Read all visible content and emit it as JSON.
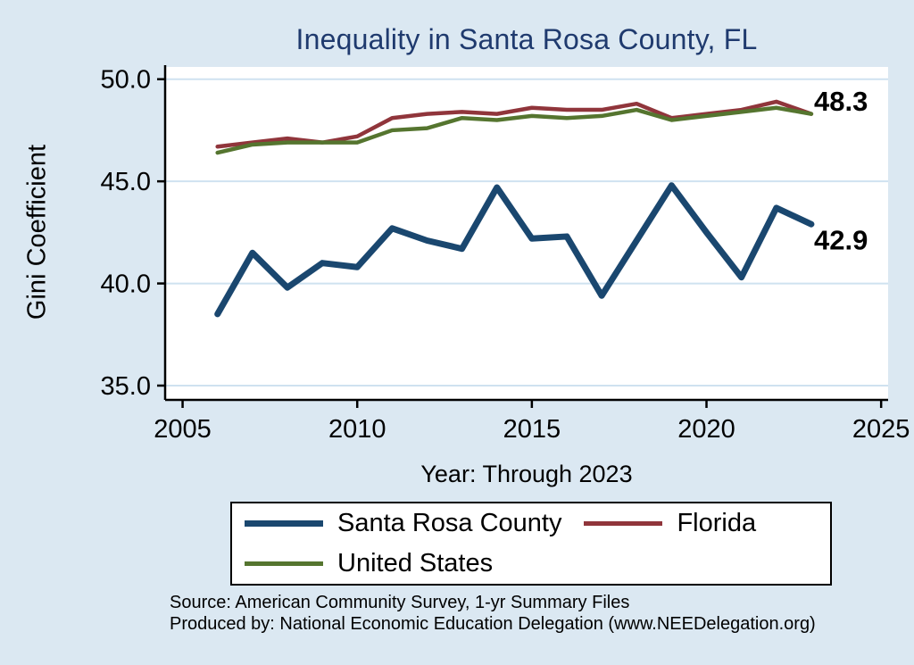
{
  "page": {
    "background": "#dbe8f2"
  },
  "chart_data": {
    "type": "line",
    "title": "Inequality in Santa Rosa County, FL",
    "title_color": "#1f3a6e",
    "xlabel": "Year: Through 2023",
    "ylabel": "Gini Coefficient",
    "x": [
      2006,
      2007,
      2008,
      2009,
      2010,
      2011,
      2012,
      2013,
      2014,
      2015,
      2016,
      2017,
      2018,
      2019,
      2020,
      2021,
      2022,
      2023
    ],
    "xticks": [
      2005,
      2010,
      2015,
      2020,
      2025
    ],
    "yticks": [
      35,
      40,
      45,
      50
    ],
    "xlim": [
      2004.5,
      2025.2
    ],
    "ylim": [
      34.3,
      50.6
    ],
    "grid": true,
    "legend_position": "bottom",
    "series": [
      {
        "name": "Santa Rosa County",
        "color": "#1a476f",
        "width": 7,
        "values": [
          38.5,
          41.5,
          39.8,
          41.0,
          40.8,
          42.7,
          42.1,
          41.7,
          44.7,
          42.2,
          42.3,
          39.4,
          42.1,
          44.8,
          42.5,
          40.3,
          43.7,
          42.9
        ]
      },
      {
        "name": "Florida",
        "color": "#90353b",
        "width": 4.5,
        "values": [
          46.7,
          46.9,
          47.1,
          46.9,
          47.2,
          48.1,
          48.3,
          48.4,
          48.3,
          48.6,
          48.5,
          48.5,
          48.8,
          48.1,
          48.3,
          48.5,
          48.9,
          48.3
        ]
      },
      {
        "name": "United States",
        "color": "#55752f",
        "width": 4.5,
        "values": [
          46.4,
          46.8,
          46.9,
          46.9,
          46.9,
          47.5,
          47.6,
          48.1,
          48.0,
          48.2,
          48.1,
          48.2,
          48.5,
          48.0,
          48.2,
          48.4,
          48.6,
          48.3
        ]
      }
    ],
    "annotations": [
      {
        "label": "48.3",
        "x": 2023.85,
        "y": 48.95
      },
      {
        "label": "42.9",
        "x": 2023.85,
        "y": 42.15
      }
    ]
  },
  "footer": {
    "source_line": "Source: American Community Survey, 1-yr Summary Files",
    "produced_line": "Produced by: National Economic Education Delegation (www.NEEDelegation.org)"
  }
}
